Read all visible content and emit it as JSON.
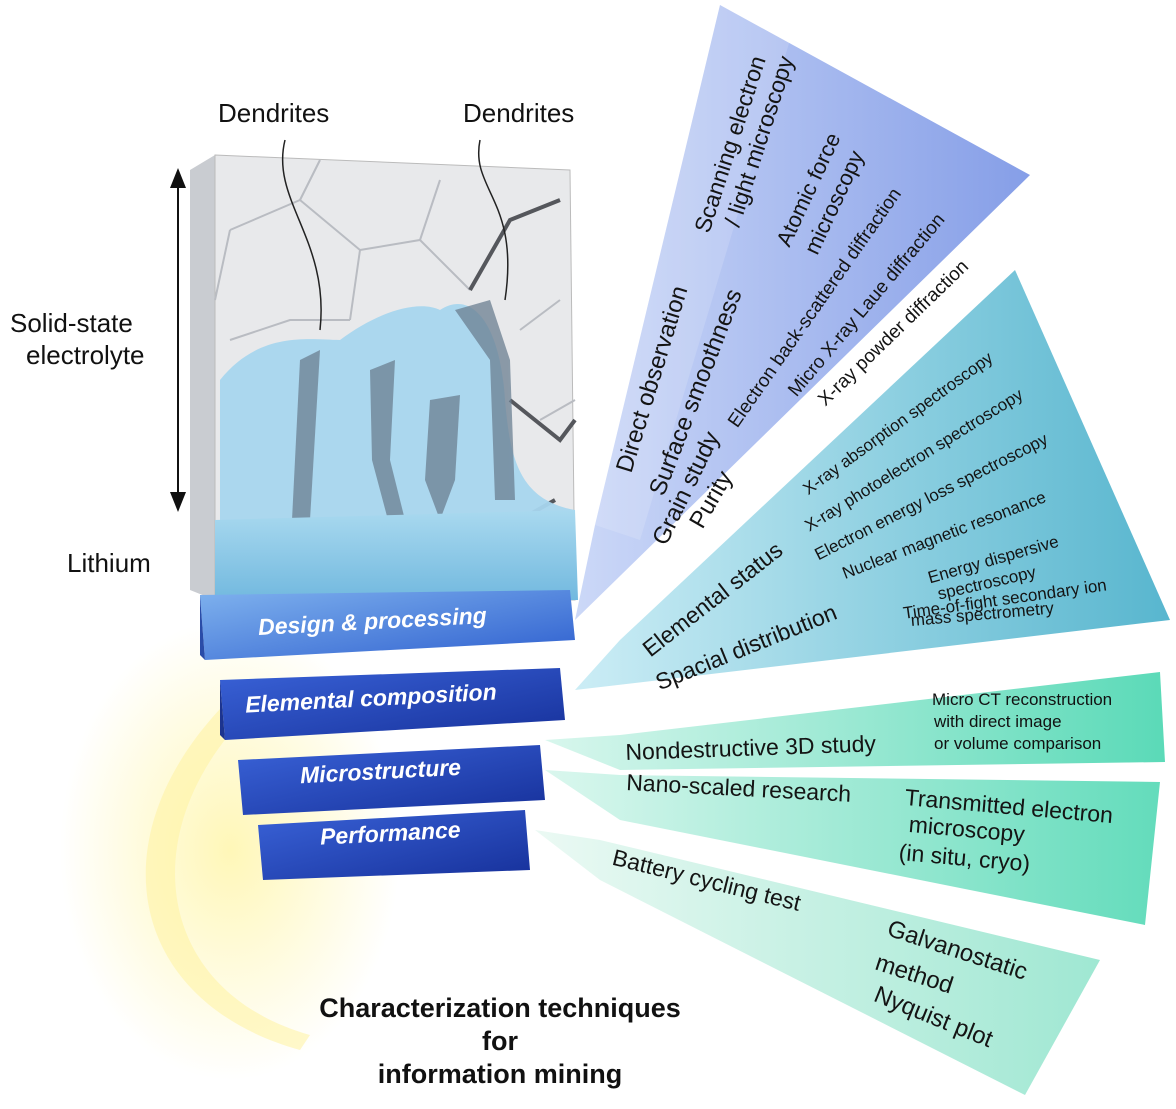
{
  "labels": {
    "dendrites_left": "Dendrites",
    "dendrites_right": "Dendrites",
    "solid_state_1": "Solid-state",
    "solid_state_2": "electrolyte",
    "lithium": "Lithium"
  },
  "layers": [
    {
      "label": "Design & processing"
    },
    {
      "label": "Elemental composition"
    },
    {
      "label": "Microstructure"
    },
    {
      "label": "Performance"
    }
  ],
  "fans": {
    "design": {
      "color": "#7f99e6",
      "inner": [
        "Direct observation",
        "Surface smoothness",
        "Grain study",
        "Purity"
      ],
      "outer": [
        "Scanning electron",
        "/ light microscopy",
        "Atomic force",
        "microscopy",
        "Electron back-scattered diffraction",
        "Micro X-ray Laue diffraction",
        "X-ray powder diffraction"
      ]
    },
    "elemental": {
      "color": "#5bbdd5",
      "inner": [
        "Elemental status",
        "Spacial distribution"
      ],
      "outer": [
        "X-ray absorption spectroscopy",
        "X-ray photoelectron spectroscopy",
        "Electron energy loss spectroscopy",
        "Nuclear magnetic resonance",
        "Energy dispersive",
        "spectroscopy",
        "Time-of-fight secondary ion",
        "mass spectrometry"
      ]
    },
    "microstructure": {
      "color": "#5fdcbb",
      "inner": [
        "Nondestructive 3D study",
        "Nano-scaled research"
      ],
      "outer": [
        "Micro CT reconstruction",
        "with direct image",
        "or volume comparison",
        "Transmitted electron",
        "microscopy",
        "(in situ, cryo)"
      ]
    },
    "performance": {
      "color": "#9ae6d0",
      "inner": [
        "Battery cycling test"
      ],
      "outer": [
        "Galvanostatic",
        "method",
        "Nyquist plot"
      ]
    }
  },
  "caption": {
    "line1": "Characterization techniques",
    "line2": "for",
    "line3": "information mining"
  }
}
